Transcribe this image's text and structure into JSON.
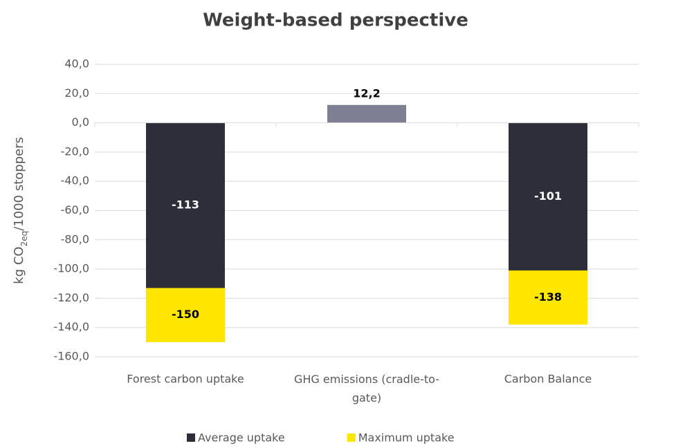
{
  "chart_data": {
    "type": "bar",
    "overlap": true,
    "title": "Weight-based perspective",
    "y_label": [
      "kg CO",
      "2eq",
      "/1000 stoppers"
    ],
    "categories": [
      "Forest carbon uptake",
      "GHG emissions (cradle-to-gate)",
      "Carbon Balance"
    ],
    "series": [
      {
        "name": "Maximum uptake",
        "color": "#ffe600",
        "values": [
          -150,
          null,
          -138
        ],
        "value_labels": [
          "-150",
          null,
          "-138"
        ]
      },
      {
        "name": "Average uptake",
        "color": "#2e2e3a",
        "colors": [
          "#2e2e3a",
          "#7f7f93",
          "#2e2e3a"
        ],
        "values": [
          -113,
          12.2,
          -101
        ],
        "value_labels": [
          "-113",
          "12,2",
          "-101"
        ]
      }
    ],
    "legend_order": [
      1,
      0
    ],
    "legend": "bottom",
    "ylim": [
      -160,
      40
    ],
    "yticks": [
      {
        "value": -160,
        "label": "-160,0"
      },
      {
        "value": -140,
        "label": "-140,0"
      },
      {
        "value": -120,
        "label": "-120,0"
      },
      {
        "value": -100,
        "label": "-100,0"
      },
      {
        "value": -80,
        "label": "-80,0"
      },
      {
        "value": -60,
        "label": "-60,0"
      },
      {
        "value": -40,
        "label": "-40,0"
      },
      {
        "value": -20,
        "label": "-20,0"
      },
      {
        "value": 0,
        "label": "0,0"
      },
      {
        "value": 20,
        "label": "20,0"
      },
      {
        "value": 40,
        "label": "40,0"
      }
    ],
    "grid": true
  }
}
